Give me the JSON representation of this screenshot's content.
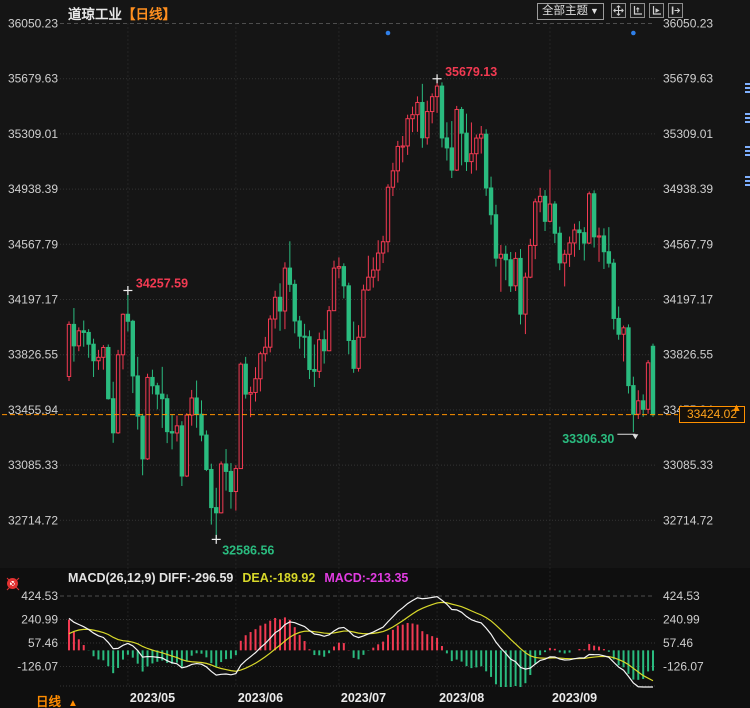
{
  "header": {
    "symbol": "道琼工业",
    "period": "【日线】",
    "theme_dropdown": "全部主题",
    "dropdown_caret": "▼"
  },
  "toolbar_icons": [
    "move-icon",
    "y-axis-scale-icon",
    "auto-fit-icon",
    "go-to-latest-icon"
  ],
  "colors": {
    "up": "#f23a52",
    "down": "#2abb7f",
    "accent_orange": "#ff9100",
    "dea_yellow": "#d8d82a",
    "macd_magenta": "#e23ce2",
    "dot_blue": "#2f7fe8",
    "diff_white": "#f5f5f5"
  },
  "macd_header": {
    "name": "MACD(26,12,9)",
    "diff": "DIFF:-296.59",
    "dea": "DEA:-189.92",
    "macd": "MACD:-213.35"
  },
  "price_box": {
    "label": "33424.02"
  },
  "price_marker_arrow": "▲",
  "bottom": {
    "period_label": "日线",
    "arrow": "▲"
  },
  "chart_data": {
    "type": "candlestick+macd",
    "title": "道琼工业 日线 (Dow Jones Industrial, daily)",
    "y_axis_labels": [
      "36050.23",
      "35679.63",
      "35309.01",
      "34938.39",
      "34567.79",
      "34197.17",
      "33826.55",
      "33455.94",
      "33085.33",
      "32714.72"
    ],
    "macd_axis_labels": [
      "424.53",
      "240.99",
      "57.46",
      "-126.07"
    ],
    "x_labels": [
      {
        "label": "2023/05",
        "index": 12
      },
      {
        "label": "2023/06",
        "index": 34
      },
      {
        "label": "2023/07",
        "index": 55
      },
      {
        "label": "2023/08",
        "index": 75
      },
      {
        "label": "2023/09",
        "index": 98
      }
    ],
    "latest_price": 33424.02,
    "event_dots_indices": [
      65,
      115
    ],
    "markers": [
      {
        "kind": "high",
        "index": 12,
        "value": 34257.59,
        "label": "34257.59"
      },
      {
        "kind": "low",
        "index": 30,
        "value": 32586.56,
        "label": "32586.56"
      },
      {
        "kind": "high",
        "index": 75,
        "value": 35679.13,
        "label": "35679.13"
      },
      {
        "kind": "low_elbow",
        "index": 115,
        "value": 33306.3,
        "label": "33306.30"
      }
    ],
    "macd": {
      "params": [
        26,
        12,
        9
      ],
      "seed_dif": 250,
      "seed_dea": 130,
      "display": {
        "diff": -296.59,
        "dea": -189.92,
        "macd": -213.35
      }
    },
    "candles": [
      [
        33680,
        34050,
        33650,
        34030
      ],
      [
        34030,
        34140,
        33780,
        33886
      ],
      [
        33886,
        34010,
        33850,
        33987
      ],
      [
        33987,
        34056,
        33880,
        33976
      ],
      [
        33976,
        33998,
        33806,
        33897
      ],
      [
        33897,
        33934,
        33677,
        33786
      ],
      [
        33786,
        33859,
        33725,
        33809
      ],
      [
        33809,
        33891,
        33726,
        33875
      ],
      [
        33875,
        33895,
        33525,
        33531
      ],
      [
        33531,
        33645,
        33235,
        33302
      ],
      [
        33302,
        33859,
        33295,
        33826
      ],
      [
        33826,
        34104,
        33728,
        34098
      ],
      [
        34098,
        34257.59,
        33983,
        34051
      ],
      [
        34051,
        34061,
        33569,
        33684
      ],
      [
        33684,
        33812,
        33324,
        33414
      ],
      [
        33414,
        33430,
        33017,
        33127
      ],
      [
        33127,
        33699,
        33120,
        33674
      ],
      [
        33674,
        33726,
        33561,
        33618
      ],
      [
        33618,
        33638,
        33460,
        33562
      ],
      [
        33562,
        33745,
        33335,
        33531
      ],
      [
        33531,
        33560,
        33233,
        33310
      ],
      [
        33310,
        33427,
        33191,
        33301
      ],
      [
        33301,
        33418,
        33244,
        33349
      ],
      [
        33349,
        33380,
        32945,
        33012
      ],
      [
        33012,
        33434,
        33005,
        33421
      ],
      [
        33421,
        33590,
        33350,
        33536
      ],
      [
        33536,
        33653,
        33336,
        33427
      ],
      [
        33427,
        33520,
        33245,
        33287
      ],
      [
        33287,
        33318,
        33045,
        33056
      ],
      [
        33056,
        33095,
        32686,
        32800
      ],
      [
        32800,
        32933,
        32586.56,
        32765
      ],
      [
        32765,
        33110,
        32760,
        33093
      ],
      [
        33093,
        33193,
        32914,
        33043
      ],
      [
        33043,
        33099,
        32793,
        32908
      ],
      [
        32908,
        33085,
        32780,
        33062
      ],
      [
        33062,
        33775,
        33060,
        33763
      ],
      [
        33763,
        33812,
        33532,
        33562
      ],
      [
        33562,
        33612,
        33407,
        33573
      ],
      [
        33573,
        33743,
        33512,
        33665
      ],
      [
        33665,
        33847,
        33580,
        33833
      ],
      [
        33833,
        33946,
        33781,
        33877
      ],
      [
        33877,
        34091,
        33842,
        34066
      ],
      [
        34066,
        34256,
        34002,
        34212
      ],
      [
        34212,
        34306,
        33987,
        34120
      ],
      [
        34120,
        34447,
        33998,
        34408
      ],
      [
        34408,
        34588,
        34248,
        34299
      ],
      [
        34299,
        34330,
        33970,
        34053
      ],
      [
        34053,
        34087,
        33867,
        33951
      ],
      [
        33951,
        34034,
        33804,
        33947
      ],
      [
        33947,
        33990,
        33663,
        33727
      ],
      [
        33727,
        33895,
        33610,
        33715
      ],
      [
        33715,
        33975,
        33670,
        33927
      ],
      [
        33927,
        33990,
        33767,
        33853
      ],
      [
        33853,
        34153,
        33850,
        34122
      ],
      [
        34122,
        34458,
        34120,
        34408
      ],
      [
        34408,
        34480,
        34339,
        34418
      ],
      [
        34418,
        34440,
        34205,
        34289
      ],
      [
        34289,
        34310,
        33830,
        33922
      ],
      [
        33922,
        34049,
        33705,
        33735
      ],
      [
        33735,
        34025,
        33713,
        33944
      ],
      [
        33944,
        34297,
        33940,
        34261
      ],
      [
        34261,
        34491,
        34255,
        34347
      ],
      [
        34347,
        34480,
        34277,
        34395
      ],
      [
        34395,
        34595,
        34320,
        34509
      ],
      [
        34509,
        34625,
        34442,
        34585
      ],
      [
        34585,
        34971,
        34514,
        34951
      ],
      [
        34951,
        35115,
        34892,
        35061
      ],
      [
        35061,
        35262,
        34982,
        35225
      ],
      [
        35225,
        35295,
        35118,
        35228
      ],
      [
        35228,
        35438,
        35168,
        35411
      ],
      [
        35411,
        35492,
        35321,
        35438
      ],
      [
        35438,
        35561,
        35323,
        35520
      ],
      [
        35520,
        35645,
        35216,
        35283
      ],
      [
        35283,
        35532,
        35237,
        35459
      ],
      [
        35459,
        35581,
        35380,
        35559
      ],
      [
        35559,
        35679.13,
        35450,
        35630
      ],
      [
        35630,
        35655,
        35218,
        35282
      ],
      [
        35282,
        35387,
        35130,
        35215
      ],
      [
        35215,
        35395,
        35013,
        35066
      ],
      [
        35066,
        35497,
        35060,
        35473
      ],
      [
        35473,
        35490,
        35098,
        35314
      ],
      [
        35314,
        35445,
        35060,
        35123
      ],
      [
        35123,
        35386,
        35042,
        35176
      ],
      [
        35176,
        35305,
        35064,
        35281
      ],
      [
        35281,
        35362,
        35177,
        35307
      ],
      [
        35307,
        35340,
        34893,
        34946
      ],
      [
        34946,
        35022,
        34700,
        34766
      ],
      [
        34766,
        34833,
        34418,
        34475
      ],
      [
        34475,
        34563,
        34249,
        34501
      ],
      [
        34501,
        34559,
        34327,
        34464
      ],
      [
        34464,
        34516,
        34248,
        34289
      ],
      [
        34289,
        34515,
        34254,
        34473
      ],
      [
        34473,
        34536,
        34030,
        34099
      ],
      [
        34099,
        34378,
        33965,
        34347
      ],
      [
        34347,
        34605,
        34340,
        34560
      ],
      [
        34560,
        34875,
        34468,
        34853
      ],
      [
        34853,
        34947,
        34783,
        34890
      ],
      [
        34890,
        34932,
        34657,
        34722
      ],
      [
        34722,
        35070,
        34715,
        34838
      ],
      [
        34838,
        34857,
        34576,
        34642
      ],
      [
        34642,
        34686,
        34394,
        34443
      ],
      [
        34443,
        34531,
        34285,
        34501
      ],
      [
        34501,
        34620,
        34416,
        34577
      ],
      [
        34577,
        34706,
        34484,
        34664
      ],
      [
        34664,
        34723,
        34530,
        34646
      ],
      [
        34646,
        34683,
        34459,
        34576
      ],
      [
        34576,
        34922,
        34570,
        34907
      ],
      [
        34907,
        34930,
        34546,
        34618
      ],
      [
        34618,
        34680,
        34450,
        34624
      ],
      [
        34624,
        34675,
        34402,
        34518
      ],
      [
        34518,
        34683,
        34412,
        34441
      ],
      [
        34441,
        34470,
        33996,
        34070
      ],
      [
        34070,
        34150,
        33927,
        33964
      ],
      [
        33964,
        34022,
        33781,
        34007
      ],
      [
        34007,
        34030,
        33566,
        33619
      ],
      [
        33619,
        33679,
        33306.3,
        33427
      ],
      [
        33427,
        33588,
        33395,
        33517
      ],
      [
        33517,
        33560,
        33410,
        33460
      ],
      [
        33460,
        33790,
        33430,
        33772
      ],
      [
        33883,
        33901,
        33410,
        33424.02
      ]
    ]
  }
}
